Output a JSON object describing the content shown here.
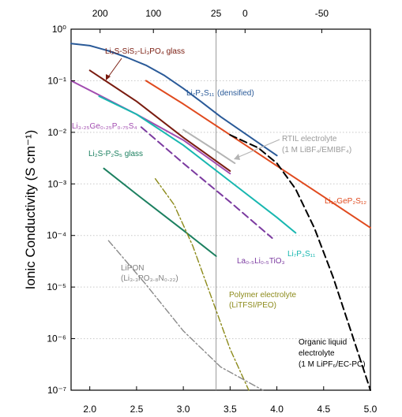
{
  "chart_data": {
    "type": "line",
    "title": "",
    "xlabel": "",
    "ylabel": "Ionic Conductivity (S cm⁻¹)",
    "xlim": [
      1.8,
      5.0
    ],
    "ylim_log10": [
      -7,
      0
    ],
    "y_scale": "log",
    "grid": "horizontal dotted",
    "x_ticks": [
      "2.0",
      "2.5",
      "3.0",
      "3.5",
      "4.0",
      "4.5",
      "5.0"
    ],
    "x_tick_values": [
      2.0,
      2.5,
      3.0,
      3.5,
      4.0,
      4.5,
      5.0
    ],
    "y_ticks": [
      "10⁰",
      "10⁻¹",
      "10⁻²",
      "10⁻³",
      "10⁻⁴",
      "10⁻⁵",
      "10⁻⁶",
      "10⁻⁷"
    ],
    "y_tick_values": [
      0,
      -1,
      -2,
      -3,
      -4,
      -5,
      -6,
      -7
    ],
    "top_ticks": [
      "200",
      "100",
      "25",
      "0",
      "-50"
    ],
    "top_tick_positions": [
      2.11,
      2.68,
      3.35,
      3.66,
      4.48
    ],
    "reference_line_x": 3.35,
    "series": [
      {
        "name": "Li2S-SiS2-Li3PO4 glass",
        "color": "#7a1c10",
        "style": "solid",
        "x": [
          2.0,
          2.5,
          3.0,
          3.5
        ],
        "logy": [
          -0.8,
          -1.4,
          -2.1,
          -2.75
        ]
      },
      {
        "name": "Li7P3S11 (densified)",
        "color": "#2a5a98",
        "style": "solid",
        "x": [
          1.8,
          2.0,
          2.2,
          2.4,
          2.6,
          2.8,
          3.0,
          3.2,
          3.4,
          3.6,
          3.8,
          4.0
        ],
        "logy": [
          -0.28,
          -0.32,
          -0.42,
          -0.55,
          -0.7,
          -0.9,
          -1.15,
          -1.42,
          -1.7,
          -1.95,
          -2.2,
          -2.45
        ]
      },
      {
        "name": "Li10GeP2S12",
        "color": "#e04a1e",
        "style": "solid",
        "x": [
          2.6,
          3.0,
          3.5,
          4.0,
          4.5,
          5.0
        ],
        "logy": [
          -1.0,
          -1.45,
          -2.05,
          -2.65,
          -3.25,
          -3.85
        ]
      },
      {
        "name": "Li3.25Ge0.25P0.75S4",
        "color": "#a24cb0",
        "style": "solid",
        "x": [
          1.8,
          2.5,
          3.0,
          3.5
        ],
        "logy": [
          -1.0,
          -1.65,
          -2.15,
          -2.8
        ]
      },
      {
        "name": "Li7P3S11",
        "color": "#18b7b0",
        "style": "solid",
        "x": [
          2.1,
          2.5,
          3.0,
          3.5,
          4.0,
          4.2
        ],
        "logy": [
          -1.3,
          -1.65,
          -2.25,
          -2.95,
          -3.65,
          -3.95
        ]
      },
      {
        "name": "Li2S-P2S5 glass",
        "color": "#1c8060",
        "style": "solid",
        "x": [
          2.15,
          2.5,
          3.0,
          3.35
        ],
        "logy": [
          -2.7,
          -3.2,
          -3.9,
          -4.4
        ]
      },
      {
        "name": "La0.5Li0.5TiO3",
        "color": "#7b3aa0",
        "style": "dashed",
        "x": [
          2.55,
          3.0,
          3.5,
          3.95
        ],
        "logy": [
          -1.9,
          -2.6,
          -3.35,
          -4.05
        ]
      },
      {
        "name": "RTIL electrolyte",
        "color": "#b4b4b4",
        "style": "solid",
        "x": [
          3.0,
          3.3,
          3.55
        ],
        "logy": [
          -1.95,
          -2.3,
          -2.6
        ]
      },
      {
        "name": "Organic liquid electrolyte",
        "color": "#000000",
        "style": "dashed",
        "x": [
          3.5,
          3.8,
          4.0,
          4.2,
          4.4,
          4.6,
          4.8,
          5.0
        ],
        "logy": [
          -2.05,
          -2.3,
          -2.6,
          -3.1,
          -3.85,
          -4.8,
          -5.9,
          -7.0
        ]
      },
      {
        "name": "Polymer electrolyte",
        "color": "#8c8a1a",
        "style": "dashdot",
        "x": [
          2.7,
          2.9,
          3.1,
          3.3,
          3.5,
          3.7
        ],
        "logy": [
          -2.9,
          -3.4,
          -4.2,
          -5.2,
          -6.2,
          -7.0
        ]
      },
      {
        "name": "LiPON",
        "color": "#8a8a8a",
        "style": "dashdot",
        "x": [
          2.2,
          2.6,
          3.0,
          3.4,
          3.85
        ],
        "logy": [
          -4.1,
          -4.95,
          -5.85,
          -6.55,
          -7.0
        ]
      }
    ],
    "labels": {
      "glass_lisisipo": "Li₂S-SiS₂-Li₃PO₄ glass",
      "li7p3s11_densified": "Li₇P₃S₁₁",
      "densified": "(densified)",
      "ligeps": "Li₃.₂₅Ge₀.₂₅P₀.₇₅S₄",
      "rtil": "RTIL electrolyte",
      "rtil_sub": "(1 M LiBF₄/EMIBF₄)",
      "lps_glass": "Li₂S-P₂S₅ glass",
      "lgps": "Li₁₀GeP₂S₁₂",
      "li7p3s11": "Li₇P₃S₁₁",
      "llto": "La₀.₅Li₀.₅TiO₃",
      "lipon": "LiPON",
      "lipon_sub": "(Li₃.₃PO₃.₈N₀.₂₂)",
      "polymer": "Polymer electrolyte",
      "polymer_sub": "(LiTFSI/PEO)",
      "organic_1": "Organic liquid",
      "organic_2": "electrolyte",
      "organic_sub": "(1 M LiPF₆/EC-PC)"
    }
  }
}
